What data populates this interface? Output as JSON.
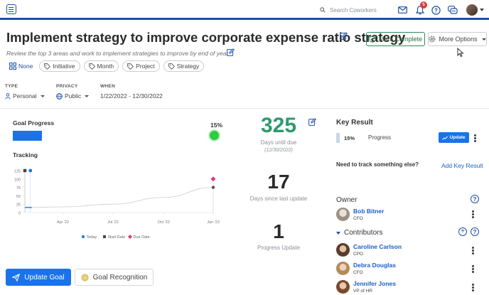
{
  "topbar": {
    "search_placeholder": "Search Coworkers",
    "notification_count": "5",
    "icons": [
      "menu-icon",
      "search-icon",
      "mail-icon",
      "bell-icon",
      "help-icon",
      "chat-icon",
      "user-avatar"
    ]
  },
  "header": {
    "title": "Implement strategy to improve corporate expense ratio strategy",
    "subtitle": "Review the top 3 areas and work to implement strategies to improve by end of year",
    "mark_complete_label": "Mark Complete",
    "more_options_label": "More Options"
  },
  "tags": {
    "none_label": "None",
    "items": [
      "Initiative",
      "Month",
      "Project",
      "Strategy"
    ]
  },
  "meta": {
    "type_label": "TYPE",
    "type_value": "Personal",
    "privacy_label": "PRIVACY",
    "privacy_value": "Public",
    "when_label": "WHEN",
    "when_value": "1/22/2022 - 12/30/2022"
  },
  "progress": {
    "label": "Goal Progress",
    "percent_text": "15%",
    "value": 0.15,
    "tracking_label": "Tracking"
  },
  "chart_data": {
    "type": "line",
    "y_ticks": [
      "125",
      "100",
      "75",
      "50",
      "25",
      "0"
    ],
    "ylim": [
      0,
      125
    ],
    "x_ticks": [
      "Apr '22",
      "Jul '22",
      "Oct '22",
      "Jan '23"
    ],
    "series": [
      {
        "name": "Today",
        "color": "#1a73e8"
      },
      {
        "name": "Start Date",
        "color": "#444444"
      },
      {
        "name": "Due Date",
        "color": "#e8336d"
      }
    ],
    "line_points": [
      {
        "x": "2022-01-22",
        "y": 15
      },
      {
        "x": "2022-04-01",
        "y": 17
      },
      {
        "x": "2022-07-01",
        "y": 25
      },
      {
        "x": "2022-10-01",
        "y": 45
      },
      {
        "x": "2022-12-30",
        "y": 75
      }
    ],
    "start_marker": {
      "x": "2022-01-22",
      "y": 125
    },
    "today_marker": {
      "x": "2022-02-01",
      "y": 125
    },
    "due_marker": {
      "x": "2022-12-30",
      "y": 100
    },
    "end_point": {
      "x": "2022-12-30",
      "y": 75
    }
  },
  "stats": {
    "days_until_due": "325",
    "days_until_due_caption": "Days until due",
    "due_date": "(12/30/2022)",
    "days_since_update": "17",
    "days_since_update_caption": "Days since last update",
    "progress_updates": "1",
    "progress_updates_caption": "Progress Update"
  },
  "key_result": {
    "title": "Key Result",
    "percent": "15%",
    "name": "Progress",
    "update_label": "Update",
    "need_text": "Need to track something else?",
    "add_label": "Add Key Result"
  },
  "owner": {
    "heading": "Owner",
    "name": "Bob Bitner",
    "role": "CFO"
  },
  "contributors": {
    "heading": "Contributors",
    "people": [
      {
        "name": "Caroline Carlson",
        "role": "CPO"
      },
      {
        "name": "Debra Douglas",
        "role": "CFO"
      },
      {
        "name": "Jennifer Jones",
        "role": "VP of HR"
      }
    ]
  },
  "actions": {
    "update_goal_label": "Update Goal",
    "recognition_label": "Goal Recognition"
  },
  "colors": {
    "primary": "#1a73e8",
    "brand_bar": "#1f4fa8",
    "stat_green": "#2e9a6e",
    "progress_dot": "#2ecc40"
  }
}
